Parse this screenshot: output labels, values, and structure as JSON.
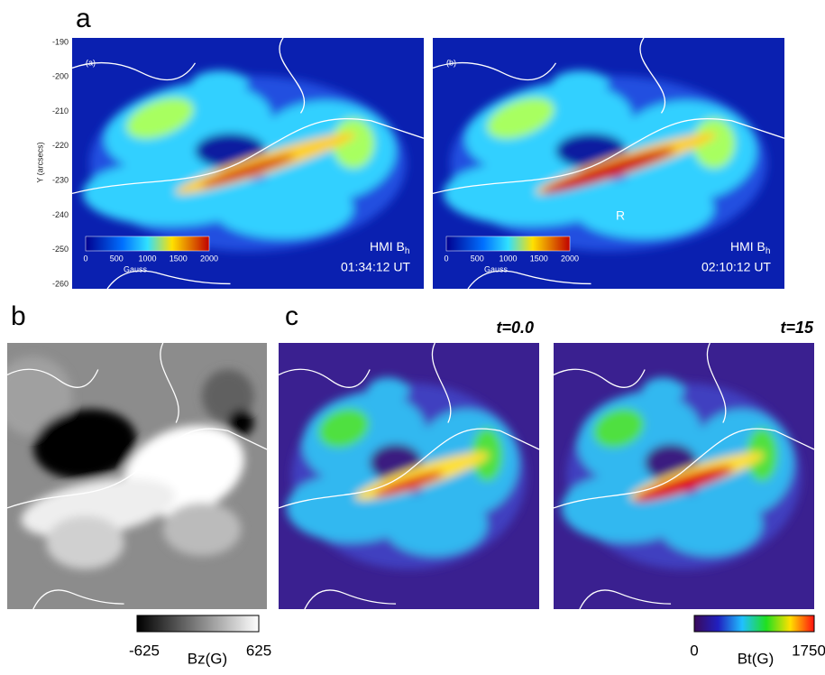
{
  "panel_a": {
    "label": "a",
    "y_axis": {
      "title": "Y (arcsecs)",
      "ticks": [
        "-190",
        "-200",
        "-210",
        "-220",
        "-230",
        "-240",
        "-250",
        "-260"
      ]
    },
    "images": [
      {
        "tag": "(a)",
        "colorbar_ticks": [
          "0",
          "500",
          "1000",
          "1500",
          "2000"
        ],
        "colorbar_unit": "Gauss",
        "instrument": "HMI B",
        "instrument_sub": "h",
        "time": "01:34:12 UT"
      },
      {
        "tag": "(b)",
        "colorbar_ticks": [
          "0",
          "500",
          "1000",
          "1500",
          "2000"
        ],
        "colorbar_unit": "Gauss",
        "instrument": "HMI B",
        "instrument_sub": "h",
        "time": "02:10:12 UT",
        "marker": "R"
      }
    ]
  },
  "panel_b": {
    "label": "b",
    "colorbar": {
      "min": "-625",
      "unit": "Bz(G)",
      "max": "625"
    }
  },
  "panel_c": {
    "label": "c",
    "frames": [
      {
        "time": "t=0.0"
      },
      {
        "time": "t=15"
      }
    ],
    "colorbar": {
      "min": "0",
      "unit": "Bt(G)",
      "max": "1750"
    }
  }
}
